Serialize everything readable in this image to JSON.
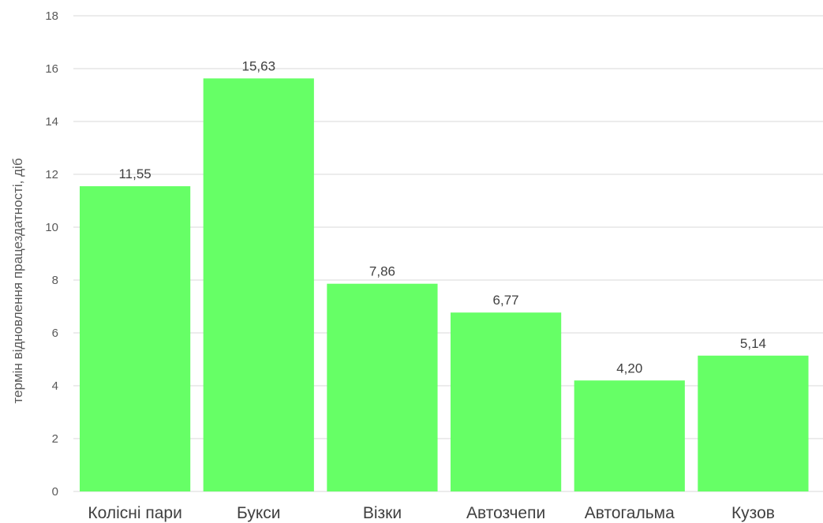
{
  "chart_data": {
    "type": "bar",
    "title": "",
    "xlabel": "",
    "ylabel": "термін відновлення працездатності, діб",
    "categories": [
      "Колісні пари",
      "Букси",
      "Візки",
      "Автозчепи",
      "Автогальма",
      "Кузов"
    ],
    "values": [
      11.55,
      15.63,
      7.86,
      6.77,
      4.2,
      5.14
    ],
    "data_labels": [
      "11,55",
      "15,63",
      "7,86",
      "6,77",
      "4,20",
      "5,14"
    ],
    "ylim": [
      0,
      18
    ],
    "yticks": [
      0,
      2,
      4,
      6,
      8,
      10,
      12,
      14,
      16,
      18
    ],
    "grid": true,
    "legend": "none",
    "colors": {
      "bar": "#66ff66",
      "grid": "#d9d9d9"
    }
  }
}
